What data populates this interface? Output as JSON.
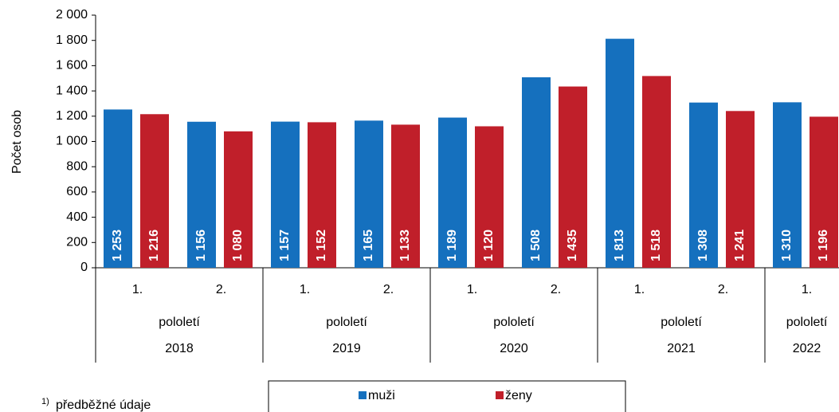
{
  "chart_data": {
    "type": "bar",
    "y_label": "Počet osob",
    "groups": [
      {
        "year": "2018",
        "period": "pololetí",
        "halves": [
          "1.",
          "2."
        ]
      },
      {
        "year": "2019",
        "period": "pololetí",
        "halves": [
          "1.",
          "2."
        ]
      },
      {
        "year": "2020",
        "period": "pololetí",
        "halves": [
          "1.",
          "2."
        ]
      },
      {
        "year": "2021",
        "period": "pololetí",
        "halves": [
          "1.",
          "2."
        ]
      },
      {
        "year": "2022",
        "period": "pololetí",
        "halves": [
          "1."
        ]
      }
    ],
    "series": [
      {
        "name": "muži",
        "color": "#1570be",
        "values": [
          1253,
          1156,
          1157,
          1165,
          1189,
          1508,
          1813,
          1308,
          1310
        ],
        "value_labels": [
          "1 253",
          "1 156",
          "1 157",
          "1 165",
          "1 189",
          "1 508",
          "1 813",
          "1 308",
          "1 310"
        ]
      },
      {
        "name": "ženy",
        "color": "#c01f2a",
        "values": [
          1216,
          1080,
          1152,
          1133,
          1120,
          1435,
          1518,
          1241,
          1196
        ],
        "value_labels": [
          "1 216",
          "1 080",
          "1 152",
          "1 133",
          "1 120",
          "1 435",
          "1 518",
          "1 241",
          "1 196"
        ]
      }
    ],
    "ylim": [
      0,
      2000
    ],
    "yticks": [
      0,
      200,
      400,
      600,
      800,
      {
        "value": 1000,
        "label": "1 000"
      },
      {
        "value": 1200,
        "label": "1 200"
      },
      {
        "value": 1400,
        "label": "1 400"
      },
      {
        "value": 1600,
        "label": "1 600"
      },
      {
        "value": 1800,
        "label": "1 800"
      },
      {
        "value": 2000,
        "label": "2 000"
      }
    ],
    "grid": false,
    "footnote_mark": "1)",
    "footnote": "předběžné údaje"
  }
}
